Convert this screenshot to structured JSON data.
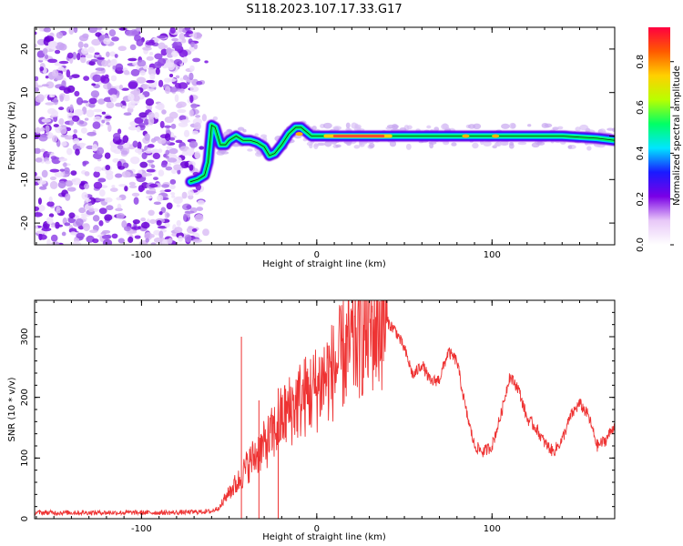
{
  "title": "S118.2023.107.17.33.G17",
  "chart_data": [
    {
      "type": "heatmap",
      "xlabel": "Height of straight line (km)",
      "ylabel": "Frequency (Hz)",
      "xlim": [
        -161,
        170
      ],
      "ylim": [
        -25,
        25
      ],
      "x_ticks": [
        -100,
        0,
        100
      ],
      "y_ticks": [
        -20,
        -10,
        0,
        10,
        20
      ],
      "colorbar": {
        "label": "Normalized spectral amplitude",
        "range": [
          0,
          0.95
        ],
        "ticks": [
          "0.0",
          "0.2",
          "0.4",
          "0.6",
          "0.8"
        ],
        "colors": [
          "#ffffff",
          "#e8c8f8",
          "#7a00e6",
          "#1a1aff",
          "#00e5ff",
          "#00ff66",
          "#b8ff00",
          "#ffd000",
          "#ff5a00",
          "#ff0040"
        ]
      },
      "noise_region_x": [
        -161,
        -66
      ],
      "trace": {
        "x": [
          -72,
          -68,
          -64,
          -62,
          -60,
          -58,
          -55,
          -52,
          -50,
          -46,
          -42,
          -38,
          -34,
          -30,
          -27,
          -24,
          -20,
          -16,
          -12,
          -9,
          -6,
          -3,
          0,
          5,
          10,
          20,
          30,
          40,
          60,
          80,
          100,
          120,
          140,
          160,
          170
        ],
        "y": [
          -10.5,
          -10,
          -9,
          -6,
          2.5,
          2,
          -2,
          -2,
          -1,
          0,
          -1,
          -1,
          -1.5,
          -2.5,
          -4.5,
          -4,
          -2,
          0.5,
          2,
          2,
          1,
          0,
          0,
          0,
          0,
          0,
          0,
          0,
          0,
          0,
          0,
          0,
          0,
          -0.5,
          -1
        ]
      }
    },
    {
      "type": "line",
      "xlabel": "Height of straight line (km)",
      "ylabel": "SNR (10 * v/v)",
      "xlim": [
        -161,
        170
      ],
      "ylim": [
        0,
        360
      ],
      "x_ticks": [
        -100,
        0,
        100
      ],
      "y_ticks": [
        0,
        100,
        200,
        300
      ],
      "color": "#ee3333",
      "series": [
        {
          "x": [
            -161,
            -140,
            -120,
            -100,
            -80,
            -60,
            -55,
            -50,
            -45,
            -40,
            -35,
            -30,
            -25,
            -20,
            -15,
            -10,
            -5,
            0,
            5,
            10,
            15,
            20,
            25,
            30,
            35,
            40,
            45,
            50,
            55,
            60,
            65,
            70,
            75,
            80,
            85,
            90,
            95,
            100,
            105,
            110,
            115,
            120,
            125,
            130,
            135,
            140,
            145,
            150,
            155,
            160,
            165,
            170
          ],
          "values": [
            10,
            10,
            10,
            10,
            10,
            12,
            20,
            45,
            60,
            85,
            105,
            120,
            140,
            165,
            180,
            195,
            205,
            215,
            235,
            245,
            270,
            285,
            300,
            310,
            315,
            325,
            310,
            280,
            235,
            255,
            225,
            230,
            275,
            260,
            180,
            120,
            110,
            120,
            170,
            235,
            215,
            165,
            150,
            125,
            110,
            130,
            170,
            190,
            170,
            120,
            130,
            155
          ]
        }
      ],
      "spikes": [
        {
          "x": -43,
          "y": 300
        },
        {
          "x": -33,
          "y": 195
        },
        {
          "x": -22,
          "y": 215
        }
      ]
    }
  ]
}
